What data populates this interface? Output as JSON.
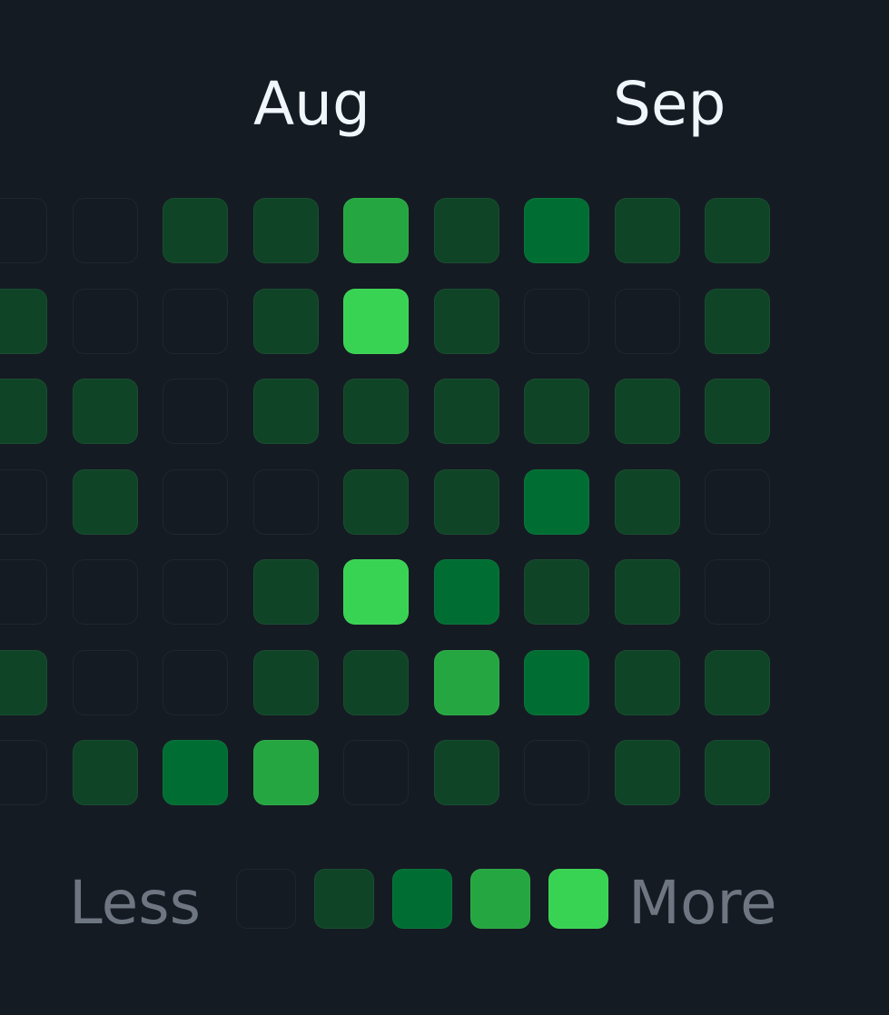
{
  "months": {
    "aug": "Aug",
    "sep": "Sep"
  },
  "legend": {
    "less_label": "Less",
    "more_label": "More",
    "levels": [
      0,
      1,
      2,
      3,
      4
    ]
  },
  "colors": {
    "background": "#151b23",
    "level_0": "#151b23",
    "level_1": "#0f4426",
    "level_2": "#006d32",
    "level_3": "#26a641",
    "level_4": "#39d353",
    "month_text": "#f0f6fc",
    "legend_text": "#6e7681"
  },
  "contribution_grid": {
    "weeks": 9,
    "days_per_week": 7,
    "levels_by_week": [
      [
        0,
        1,
        1,
        0,
        0,
        1,
        0
      ],
      [
        0,
        0,
        1,
        1,
        0,
        0,
        1
      ],
      [
        1,
        0,
        0,
        0,
        0,
        0,
        2
      ],
      [
        1,
        1,
        1,
        0,
        1,
        1,
        3
      ],
      [
        3,
        4,
        1,
        1,
        4,
        1,
        0
      ],
      [
        1,
        1,
        1,
        1,
        2,
        3,
        1
      ],
      [
        2,
        0,
        1,
        2,
        1,
        2,
        0
      ],
      [
        1,
        0,
        1,
        1,
        1,
        1,
        1
      ],
      [
        1,
        1,
        1,
        0,
        0,
        1,
        1
      ]
    ]
  }
}
